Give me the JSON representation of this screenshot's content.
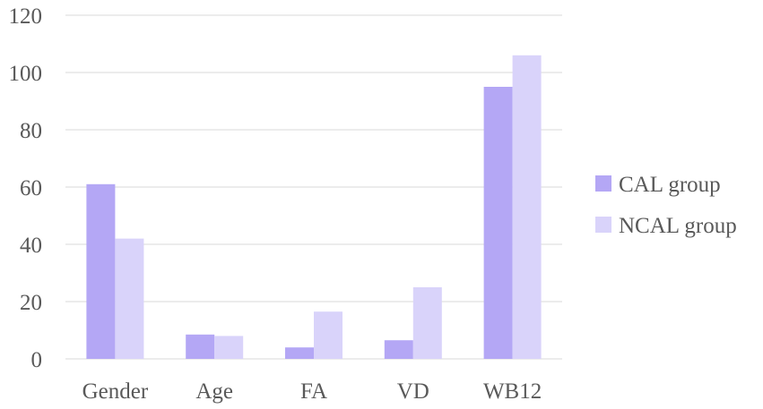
{
  "chart_data": {
    "type": "bar",
    "title": "",
    "xlabel": "",
    "ylabel": "",
    "categories": [
      "Gender",
      "Age",
      "FA",
      "VD",
      "WB12"
    ],
    "series": [
      {
        "name": "CAL group",
        "values": [
          61,
          8.5,
          4,
          6.5,
          95
        ],
        "color": "#b4a7f5"
      },
      {
        "name": "NCAL group",
        "values": [
          42,
          8,
          16.5,
          25,
          106
        ],
        "color": "#d9d3fa"
      }
    ],
    "ylim": [
      0,
      120
    ],
    "yticks": [
      "0",
      "20",
      "40",
      "60",
      "80",
      "100",
      "120"
    ],
    "grid": true,
    "legend_position": "right"
  }
}
